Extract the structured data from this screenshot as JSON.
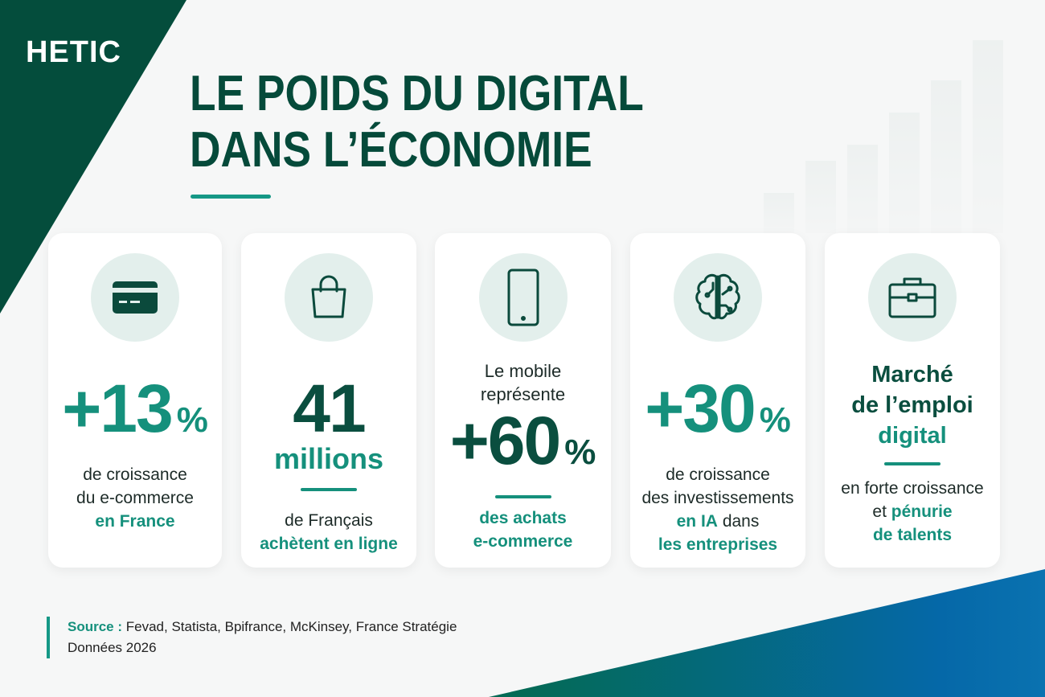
{
  "brand": "HETIC",
  "title": {
    "line1": "LE POIDS DU DIGITAL",
    "line2": "DANS L’ÉCONOMIE"
  },
  "colors": {
    "dark_green": "#044d3c",
    "teal": "#15907c",
    "icon_bg": "#e3efec",
    "bottom_gradient": [
      "#046a55",
      "#0568a8"
    ]
  },
  "cards": [
    {
      "icon": "credit-card-icon",
      "sign": "+",
      "value": "13",
      "unit": "%",
      "lines": [
        "de croissance",
        "du e-commerce"
      ],
      "highlight": "en France"
    },
    {
      "icon": "shopping-bag-icon",
      "value": "41",
      "unit": "millions",
      "lines": [
        "de Français"
      ],
      "highlight": "achètent en ligne"
    },
    {
      "icon": "smartphone-icon",
      "intro": [
        "Le mobile",
        "représente"
      ],
      "sign": "+",
      "value": "60",
      "unit": "%",
      "highlight_lines": [
        "des achats",
        "e-commerce"
      ]
    },
    {
      "icon": "brain-circuit-icon",
      "sign": "+",
      "value": "30",
      "unit": "%",
      "lines": [
        "de croissance",
        "des investissements"
      ],
      "highlight": "en IA",
      "after_highlight": "dans",
      "highlight2": "les entreprises"
    },
    {
      "icon": "briefcase-icon",
      "heading": [
        "Marché",
        "de l’emploi"
      ],
      "heading_highlight": "digital",
      "line": "en forte croissance",
      "prefix": "et",
      "highlight": "pénurie",
      "highlight2": "de talents"
    }
  ],
  "source": {
    "label": "Source :",
    "text": "Fevad, Statista, Bpifrance, McKinsey, France Stratégie",
    "year": "Données 2026"
  }
}
